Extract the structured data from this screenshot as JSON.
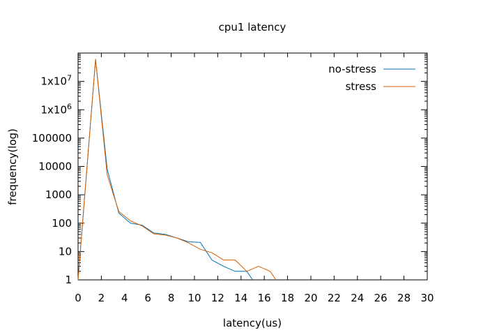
{
  "chart_data": {
    "type": "line",
    "title": "cpu1 latency",
    "xlabel": "latency(us)",
    "ylabel": "frequency(log)",
    "xlim": [
      0,
      30
    ],
    "ylim": [
      1,
      100000000
    ],
    "yscale": "log",
    "grid": false,
    "legend_position": "top-right",
    "x_ticks": [
      "0",
      "2",
      "4",
      "6",
      "8",
      "10",
      "12",
      "14",
      "16",
      "18",
      "20",
      "22",
      "24",
      "26",
      "28",
      "30"
    ],
    "y_ticks": [
      {
        "value": 1,
        "label": "1"
      },
      {
        "value": 10,
        "label": "10"
      },
      {
        "value": 100,
        "label": "100"
      },
      {
        "value": 1000,
        "label": "1000"
      },
      {
        "value": 10000,
        "label": "10000"
      },
      {
        "value": 100000,
        "label": "100000"
      },
      {
        "value": 1000000,
        "label": "1x10^6"
      },
      {
        "value": 10000000,
        "label": "1x10^7"
      }
    ],
    "series": [
      {
        "name": "no-stress",
        "color": "#0072b2",
        "points": [
          [
            0,
            1
          ],
          [
            1.5,
            60000000
          ],
          [
            2.5,
            8000
          ],
          [
            3.5,
            230
          ],
          [
            4.5,
            100
          ],
          [
            5.5,
            85
          ],
          [
            6.5,
            45
          ],
          [
            7.5,
            40
          ],
          [
            8.5,
            30
          ],
          [
            9.5,
            22
          ],
          [
            10.5,
            21
          ],
          [
            11.5,
            5
          ],
          [
            12.5,
            3
          ],
          [
            13.5,
            2
          ],
          [
            14.5,
            2
          ],
          [
            15,
            1
          ]
        ]
      },
      {
        "name": "stress",
        "color": "#d55e00",
        "points": [
          [
            0,
            1
          ],
          [
            1.5,
            60000000
          ],
          [
            2.5,
            5000
          ],
          [
            3.5,
            260
          ],
          [
            4.5,
            120
          ],
          [
            5.5,
            80
          ],
          [
            6.5,
            42
          ],
          [
            7.5,
            38
          ],
          [
            8.5,
            30
          ],
          [
            9.5,
            20
          ],
          [
            10.5,
            12
          ],
          [
            11.5,
            9
          ],
          [
            12.5,
            5
          ],
          [
            13.5,
            5
          ],
          [
            14.5,
            2
          ],
          [
            15.5,
            3
          ],
          [
            16.5,
            2
          ],
          [
            17,
            1
          ]
        ]
      }
    ]
  }
}
